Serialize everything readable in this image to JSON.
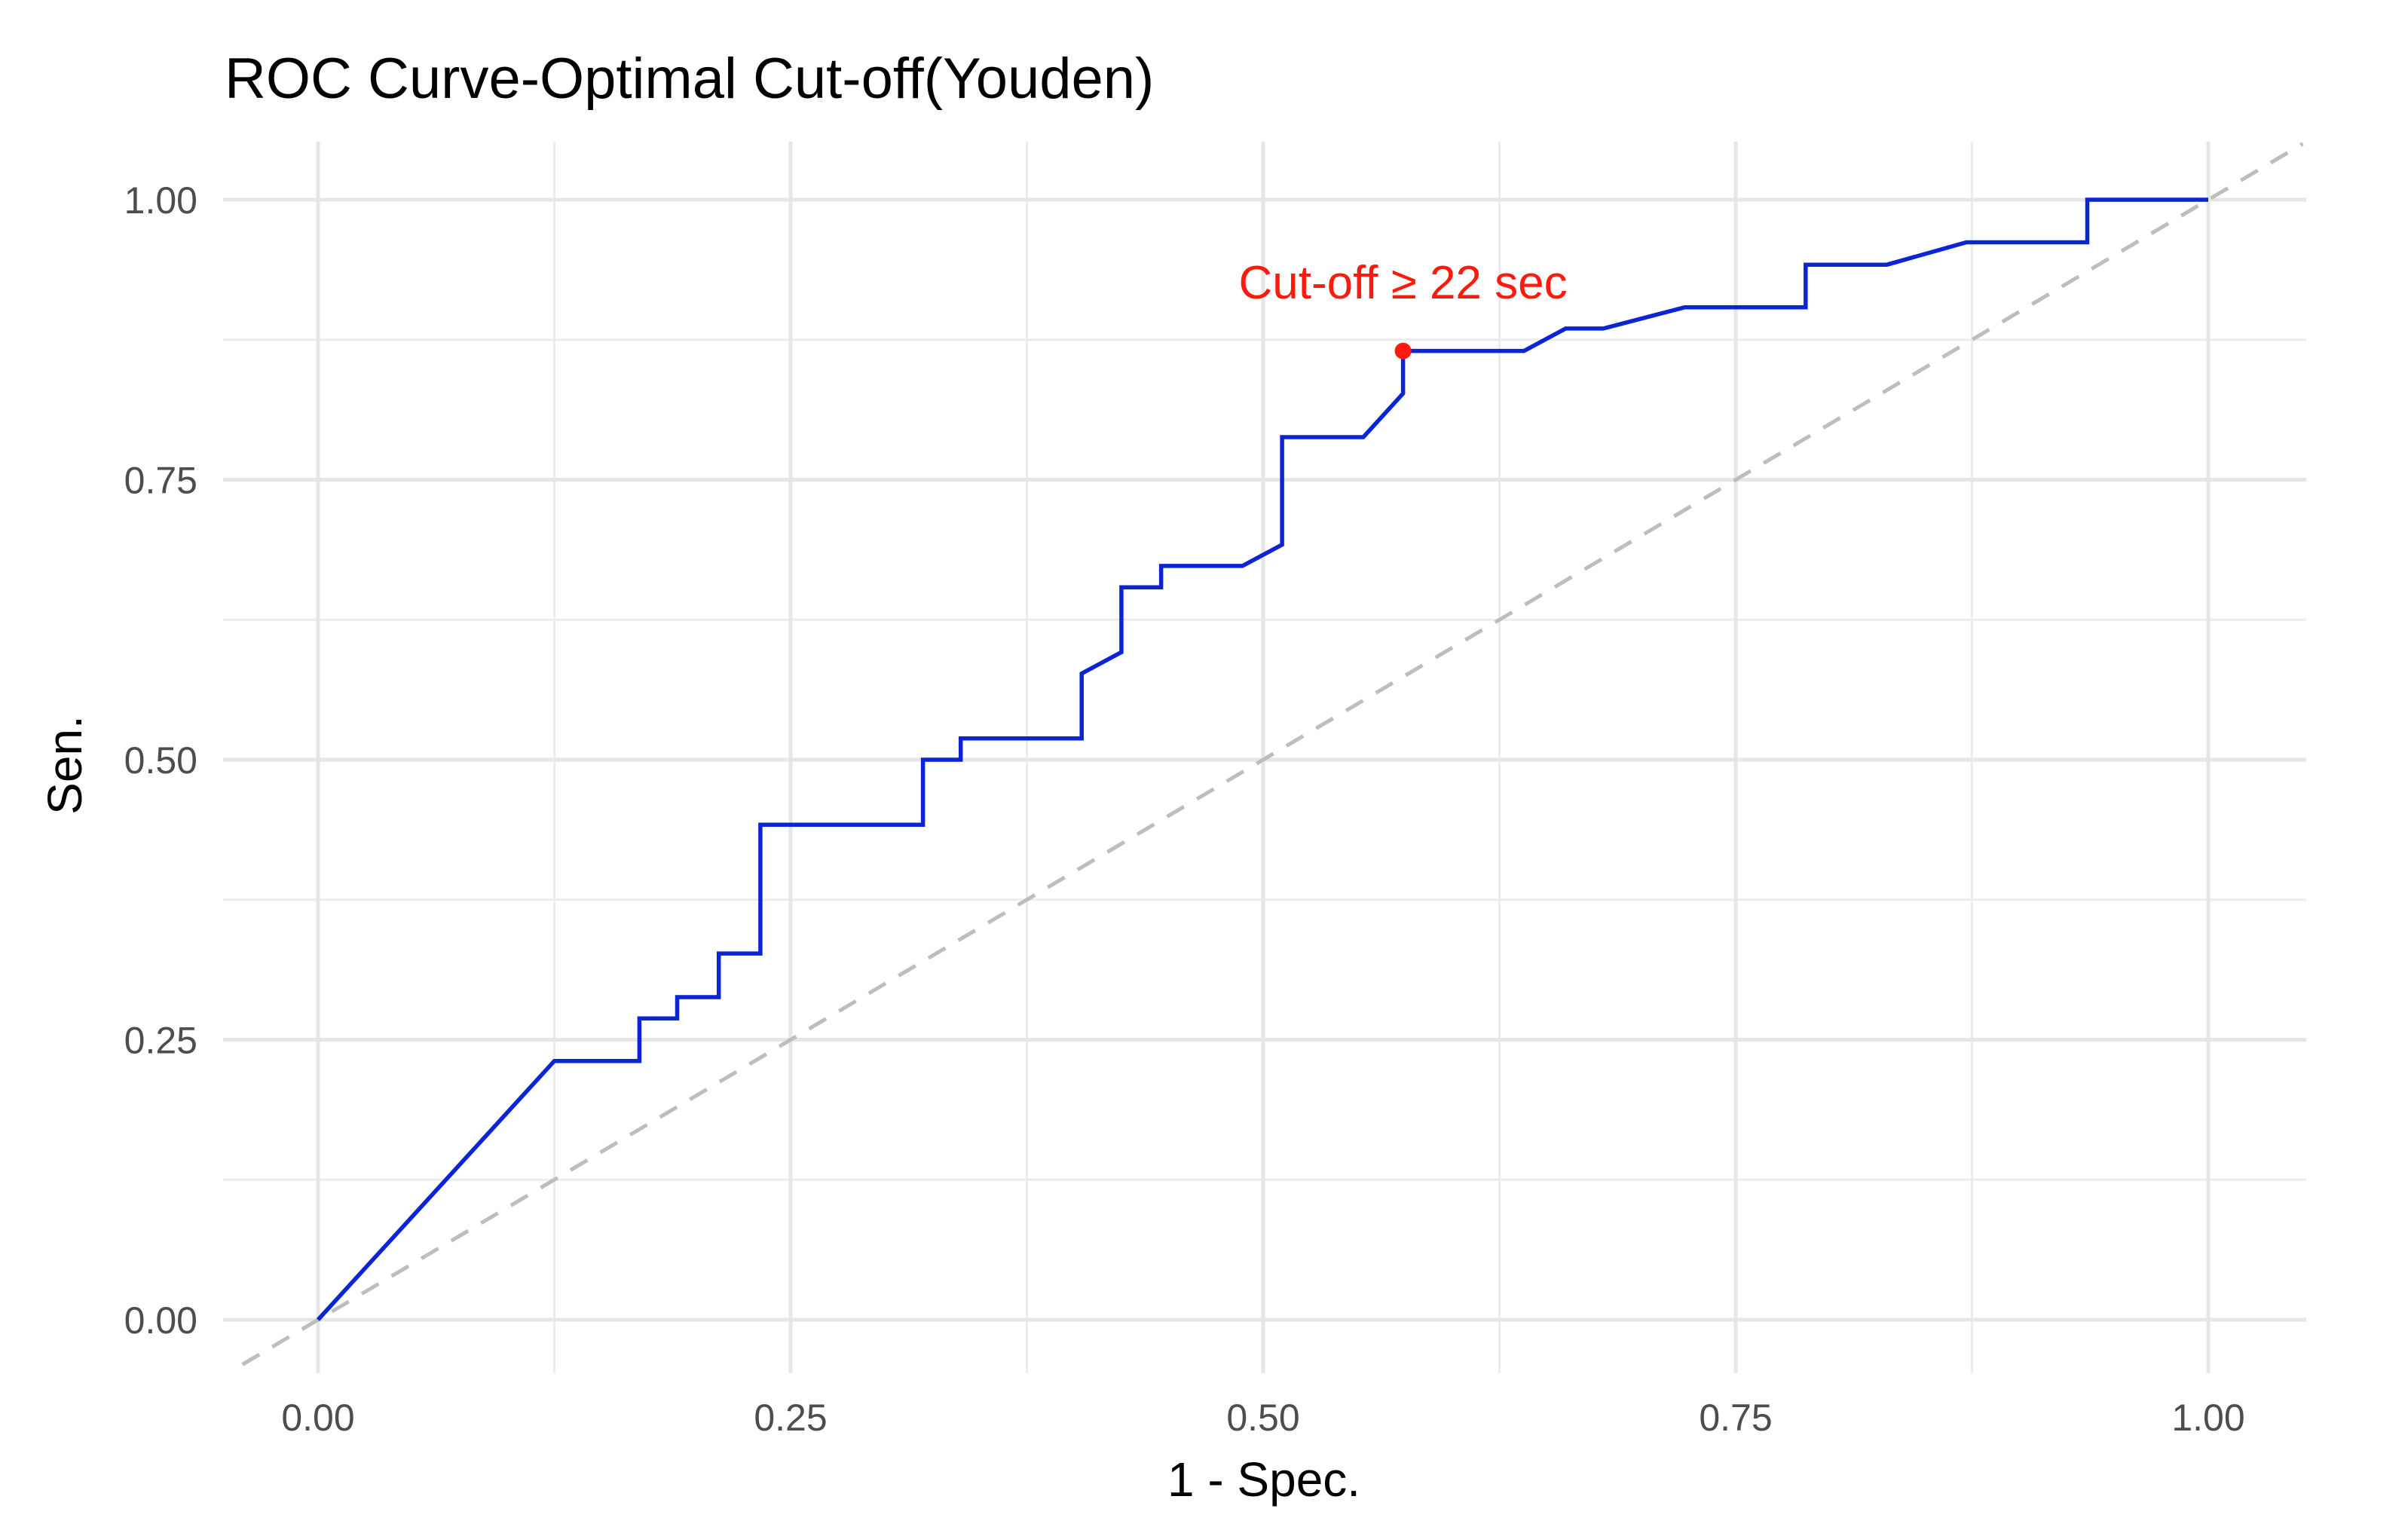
{
  "chart_data": {
    "type": "line",
    "title": "ROC Curve-Optimal Cut-off(Youden)",
    "xlabel": "1 - Spec.",
    "ylabel": "Sen.",
    "xlim": [
      -0.04,
      1.05
    ],
    "ylim": [
      -0.04,
      1.05
    ],
    "x_ticks": [
      0.0,
      0.25,
      0.5,
      0.75,
      1.0
    ],
    "y_ticks": [
      0.0,
      0.25,
      0.5,
      0.75,
      1.0
    ],
    "x_tick_labels": [
      "0.00",
      "0.25",
      "0.50",
      "0.75",
      "1.00"
    ],
    "y_tick_labels": [
      "0.00",
      "0.25",
      "0.50",
      "0.75",
      "1.00"
    ],
    "grid": true,
    "series": [
      {
        "color": "#0b24d6",
        "x": [
          0.0,
          0.125,
          0.17,
          0.17,
          0.19,
          0.19,
          0.212,
          0.212,
          0.234,
          0.234,
          0.32,
          0.32,
          0.34,
          0.34,
          0.404,
          0.404,
          0.425,
          0.425,
          0.446,
          0.446,
          0.489,
          0.51,
          0.51,
          0.553,
          0.574,
          0.574,
          0.638,
          0.66,
          0.68,
          0.723,
          0.787,
          0.787,
          0.83,
          0.872,
          0.936,
          0.936,
          1.0
        ],
        "y": [
          0.0,
          0.231,
          0.231,
          0.269,
          0.269,
          0.288,
          0.288,
          0.327,
          0.327,
          0.442,
          0.442,
          0.5,
          0.5,
          0.519,
          0.519,
          0.577,
          0.596,
          0.654,
          0.654,
          0.673,
          0.673,
          0.692,
          0.788,
          0.788,
          0.827,
          0.865,
          0.865,
          0.885,
          0.885,
          0.904,
          0.904,
          0.942,
          0.942,
          0.962,
          0.962,
          1.0,
          1.0
        ]
      }
    ],
    "reference_line": {
      "x": [
        -0.04,
        1.05
      ],
      "y": [
        -0.04,
        1.05
      ],
      "color": "#bdbdbd",
      "style": "dashed"
    },
    "optimal_point": {
      "x": 0.574,
      "y": 0.865,
      "color": "#ff1a0d"
    },
    "annotation": {
      "text": "Cut-off ≥ 22 sec",
      "x": 0.574,
      "y": 0.912,
      "color": "#ff1a0d"
    }
  }
}
